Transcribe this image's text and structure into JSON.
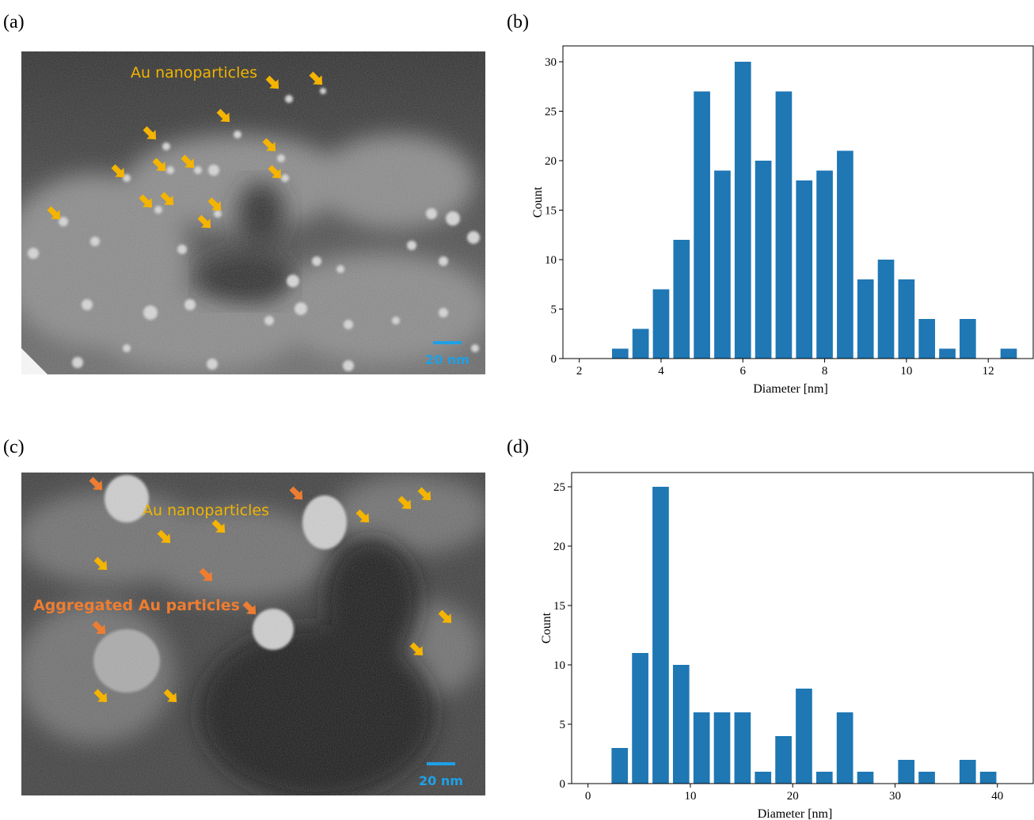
{
  "panel_labels": [
    "(a)",
    "(b)",
    "(c)",
    "(d)"
  ],
  "images": [
    {
      "labels": [
        "Au nanoparticles"
      ],
      "scale_bar": "20 nm"
    },
    {
      "labels": [
        "Au nanoparticles",
        "Aggregated Au particles"
      ],
      "scale_bar": "20 nm"
    }
  ],
  "chart_data": [
    {
      "type": "histogram",
      "xlabel": "Diameter [nm]",
      "ylabel": "Count",
      "color": "#1f77b4",
      "bins": [
        2.75,
        3.25,
        3.75,
        4.25,
        4.75,
        5.25,
        5.75,
        6.25,
        6.75,
        7.25,
        7.75,
        8.25,
        8.75,
        9.25,
        9.75,
        10.25,
        10.75,
        11.25,
        11.75,
        12.25,
        12.75
      ],
      "values": [
        1,
        3,
        7,
        12,
        27,
        19,
        30,
        20,
        27,
        18,
        19,
        21,
        8,
        10,
        8,
        4,
        1,
        4,
        0,
        1
      ],
      "xlim": [
        1.6,
        13.1
      ],
      "ylim": [
        0,
        31.6
      ],
      "xticks": [
        2,
        4,
        6,
        8,
        10,
        12
      ],
      "yticks": [
        0,
        5,
        10,
        15,
        20,
        25,
        30
      ]
    },
    {
      "type": "histogram",
      "xlabel": "Diameter [nm]",
      "ylabel": "Count",
      "color": "#1f77b4",
      "bins": [
        2.1,
        4.1,
        6.1,
        8.1,
        10.1,
        12.1,
        14.1,
        16.1,
        18.1,
        20.1,
        22.1,
        24.1,
        26.1,
        28.1,
        30.1,
        32.1,
        34.1,
        36.1,
        38.1,
        40.1
      ],
      "values": [
        3,
        11,
        25,
        10,
        6,
        6,
        6,
        1,
        4,
        8,
        1,
        6,
        1,
        0,
        2,
        1,
        0,
        2,
        1
      ],
      "xlim": [
        -1.6,
        43.5
      ],
      "ylim": [
        0,
        26.2
      ],
      "xticks": [
        0,
        10,
        20,
        30,
        40
      ],
      "yticks": [
        0,
        5,
        10,
        15,
        20,
        25
      ]
    }
  ]
}
